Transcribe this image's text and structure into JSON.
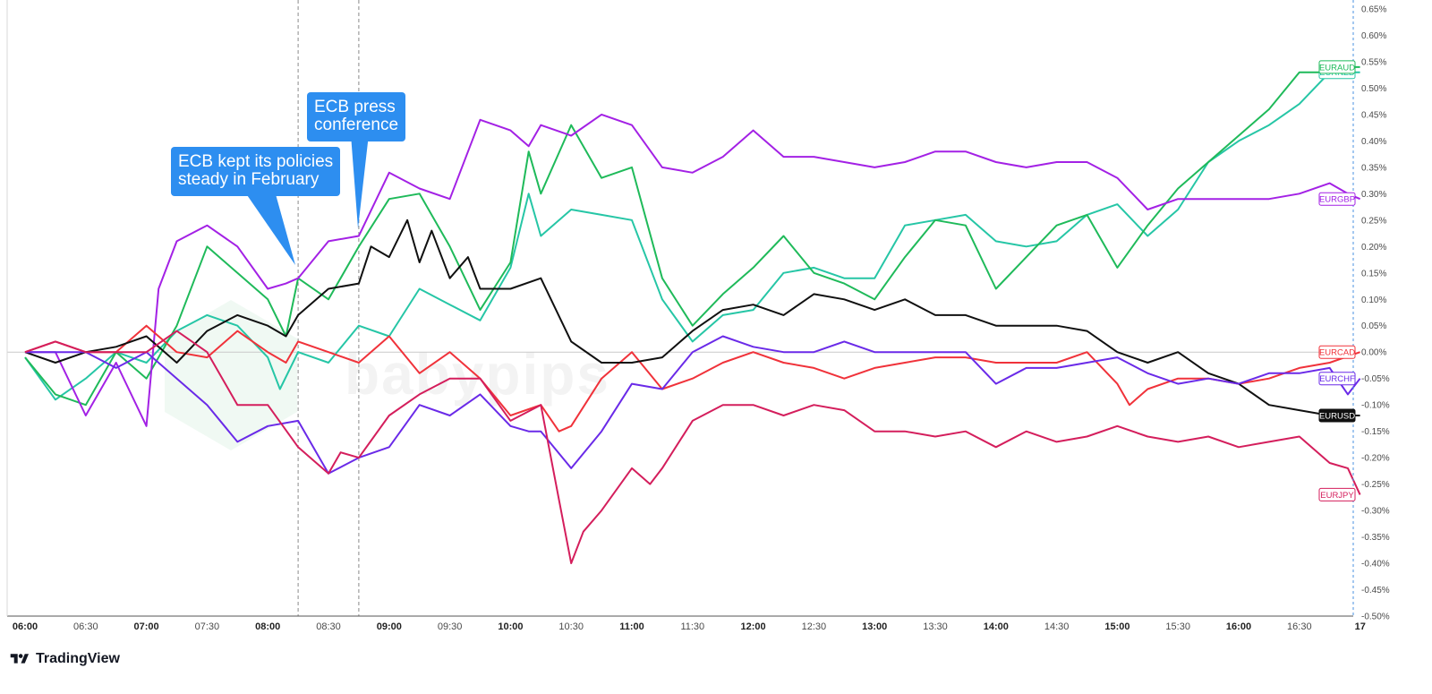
{
  "chart_data": {
    "type": "line",
    "y_axis_labels": [
      "0.65%",
      "0.60%",
      "0.55%",
      "0.50%",
      "0.45%",
      "0.40%",
      "0.35%",
      "0.30%",
      "0.25%",
      "0.20%",
      "0.15%",
      "0.10%",
      "0.05%",
      "0.00%",
      "-0.05%",
      "-0.10%",
      "-0.15%",
      "-0.20%",
      "-0.25%",
      "-0.30%",
      "-0.35%",
      "-0.40%",
      "-0.45%",
      "-0.50%"
    ],
    "ylim": [
      -0.5,
      0.65
    ],
    "x_axis_labels": [
      "06:00",
      "06:30",
      "07:00",
      "07:30",
      "08:00",
      "08:30",
      "09:00",
      "09:30",
      "10:00",
      "10:30",
      "11:00",
      "11:30",
      "12:00",
      "12:30",
      "13:00",
      "13:30",
      "14:00",
      "14:30",
      "15:00",
      "15:30",
      "16:00",
      "16:30",
      "17"
    ],
    "major_x_labels": [
      "06:00",
      "07:00",
      "08:00",
      "09:00",
      "10:00",
      "11:00",
      "12:00",
      "13:00",
      "14:00",
      "15:00",
      "16:00",
      "17"
    ],
    "xlim_hours": [
      6.0,
      17.0
    ],
    "grid": false,
    "zero_line": true,
    "event_markers": [
      {
        "time": "08:15",
        "label": "ECB kept its policies\nsteady in February"
      },
      {
        "time": "08:45",
        "label": "ECB press\nconference"
      }
    ],
    "series": [
      {
        "name": "EURNZD",
        "color": "#26c6a6",
        "x": [
          6.0,
          6.25,
          6.5,
          6.75,
          7.0,
          7.25,
          7.5,
          7.75,
          8.0,
          8.1,
          8.25,
          8.5,
          8.75,
          9.0,
          9.25,
          9.5,
          9.75,
          10.0,
          10.15,
          10.25,
          10.5,
          10.75,
          11.0,
          11.25,
          11.5,
          11.75,
          12.0,
          12.25,
          12.5,
          12.75,
          13.0,
          13.25,
          13.5,
          13.75,
          14.0,
          14.25,
          14.5,
          14.75,
          15.0,
          15.25,
          15.5,
          15.75,
          16.0,
          16.25,
          16.5,
          16.75,
          16.9,
          17.0
        ],
        "y": [
          -0.01,
          -0.09,
          -0.05,
          0.0,
          -0.02,
          0.04,
          0.07,
          0.05,
          -0.01,
          -0.07,
          0.0,
          -0.02,
          0.05,
          0.03,
          0.12,
          0.09,
          0.06,
          0.16,
          0.3,
          0.22,
          0.27,
          0.26,
          0.25,
          0.1,
          0.02,
          0.07,
          0.08,
          0.15,
          0.16,
          0.14,
          0.14,
          0.24,
          0.25,
          0.26,
          0.21,
          0.2,
          0.21,
          0.26,
          0.28,
          0.22,
          0.27,
          0.36,
          0.4,
          0.43,
          0.47,
          0.53,
          0.53,
          0.53
        ]
      },
      {
        "name": "EURAUD",
        "color": "#1fba5a",
        "x": [
          6.0,
          6.25,
          6.5,
          6.75,
          7.0,
          7.25,
          7.5,
          7.75,
          8.0,
          8.15,
          8.25,
          8.5,
          8.75,
          9.0,
          9.25,
          9.5,
          9.75,
          10.0,
          10.15,
          10.25,
          10.5,
          10.75,
          11.0,
          11.25,
          11.5,
          11.75,
          12.0,
          12.25,
          12.5,
          12.75,
          13.0,
          13.25,
          13.5,
          13.75,
          14.0,
          14.25,
          14.5,
          14.75,
          15.0,
          15.25,
          15.5,
          15.75,
          16.0,
          16.25,
          16.5,
          16.75,
          16.9,
          17.0
        ],
        "y": [
          -0.01,
          -0.08,
          -0.1,
          0.0,
          -0.05,
          0.05,
          0.2,
          0.15,
          0.1,
          0.03,
          0.14,
          0.1,
          0.2,
          0.29,
          0.3,
          0.2,
          0.08,
          0.17,
          0.38,
          0.3,
          0.43,
          0.33,
          0.35,
          0.14,
          0.05,
          0.11,
          0.16,
          0.22,
          0.15,
          0.13,
          0.1,
          0.18,
          0.25,
          0.24,
          0.12,
          0.18,
          0.24,
          0.26,
          0.16,
          0.24,
          0.31,
          0.36,
          0.41,
          0.46,
          0.53,
          0.53,
          0.54,
          0.54
        ]
      },
      {
        "name": "EURGBP",
        "color": "#a321e5",
        "x": [
          6.0,
          6.25,
          6.5,
          6.75,
          7.0,
          7.1,
          7.25,
          7.5,
          7.75,
          8.0,
          8.15,
          8.25,
          8.5,
          8.75,
          9.0,
          9.25,
          9.5,
          9.75,
          10.0,
          10.15,
          10.25,
          10.5,
          10.75,
          11.0,
          11.25,
          11.5,
          11.75,
          12.0,
          12.25,
          12.5,
          12.75,
          13.0,
          13.25,
          13.5,
          13.75,
          14.0,
          14.25,
          14.5,
          14.75,
          15.0,
          15.25,
          15.5,
          15.75,
          16.0,
          16.25,
          16.5,
          16.75,
          16.9,
          17.0
        ],
        "y": [
          0.0,
          0.0,
          -0.12,
          -0.02,
          -0.14,
          0.12,
          0.21,
          0.24,
          0.2,
          0.12,
          0.13,
          0.14,
          0.21,
          0.22,
          0.34,
          0.31,
          0.29,
          0.44,
          0.42,
          0.39,
          0.43,
          0.41,
          0.45,
          0.43,
          0.35,
          0.34,
          0.37,
          0.42,
          0.37,
          0.37,
          0.36,
          0.35,
          0.36,
          0.38,
          0.38,
          0.36,
          0.35,
          0.36,
          0.36,
          0.33,
          0.27,
          0.29,
          0.29,
          0.29,
          0.29,
          0.3,
          0.32,
          0.3,
          0.29
        ]
      },
      {
        "name": "EURCAD",
        "color": "#f0323a",
        "x": [
          6.0,
          6.25,
          6.5,
          6.75,
          7.0,
          7.25,
          7.5,
          7.75,
          8.0,
          8.15,
          8.25,
          8.5,
          8.75,
          9.0,
          9.25,
          9.5,
          9.75,
          10.0,
          10.25,
          10.4,
          10.5,
          10.75,
          11.0,
          11.25,
          11.5,
          11.75,
          12.0,
          12.25,
          12.5,
          12.75,
          13.0,
          13.25,
          13.5,
          13.75,
          14.0,
          14.25,
          14.5,
          14.75,
          15.0,
          15.1,
          15.25,
          15.5,
          15.75,
          16.0,
          16.25,
          16.5,
          16.75,
          17.0
        ],
        "y": [
          0.0,
          0.02,
          0.0,
          0.0,
          0.05,
          0.0,
          -0.01,
          0.04,
          0.0,
          -0.02,
          0.02,
          0.0,
          -0.02,
          0.03,
          -0.04,
          0.0,
          -0.05,
          -0.12,
          -0.1,
          -0.15,
          -0.14,
          -0.05,
          0.0,
          -0.07,
          -0.05,
          -0.02,
          0.0,
          -0.02,
          -0.03,
          -0.05,
          -0.03,
          -0.02,
          -0.01,
          -0.01,
          -0.02,
          -0.02,
          -0.02,
          0.0,
          -0.06,
          -0.1,
          -0.07,
          -0.05,
          -0.05,
          -0.06,
          -0.05,
          -0.03,
          -0.02,
          0.0
        ]
      },
      {
        "name": "EURUSD",
        "color": "#101010",
        "x": [
          6.0,
          6.25,
          6.5,
          6.75,
          7.0,
          7.25,
          7.5,
          7.75,
          8.0,
          8.15,
          8.25,
          8.5,
          8.75,
          8.85,
          9.0,
          9.15,
          9.25,
          9.35,
          9.5,
          9.65,
          9.75,
          10.0,
          10.25,
          10.5,
          10.75,
          11.0,
          11.25,
          11.5,
          11.75,
          12.0,
          12.25,
          12.5,
          12.75,
          13.0,
          13.25,
          13.5,
          13.75,
          14.0,
          14.25,
          14.5,
          14.75,
          15.0,
          15.25,
          15.5,
          15.75,
          16.0,
          16.25,
          16.5,
          16.75,
          17.0
        ],
        "y": [
          0.0,
          -0.02,
          0.0,
          0.01,
          0.03,
          -0.02,
          0.04,
          0.07,
          0.05,
          0.03,
          0.07,
          0.12,
          0.13,
          0.2,
          0.18,
          0.25,
          0.17,
          0.23,
          0.14,
          0.18,
          0.12,
          0.12,
          0.14,
          0.02,
          -0.02,
          -0.02,
          -0.01,
          0.04,
          0.08,
          0.09,
          0.07,
          0.11,
          0.1,
          0.08,
          0.1,
          0.07,
          0.07,
          0.05,
          0.05,
          0.05,
          0.04,
          0.0,
          -0.02,
          0.0,
          -0.04,
          -0.06,
          -0.1,
          -0.11,
          -0.12,
          -0.12
        ]
      },
      {
        "name": "EURCHF",
        "color": "#6a2ae8",
        "x": [
          6.0,
          6.25,
          6.5,
          6.75,
          7.0,
          7.25,
          7.5,
          7.75,
          8.0,
          8.25,
          8.5,
          8.75,
          9.0,
          9.25,
          9.5,
          9.75,
          10.0,
          10.15,
          10.25,
          10.5,
          10.75,
          11.0,
          11.25,
          11.5,
          11.75,
          12.0,
          12.25,
          12.5,
          12.75,
          13.0,
          13.25,
          13.5,
          13.75,
          14.0,
          14.25,
          14.5,
          14.75,
          15.0,
          15.25,
          15.5,
          15.75,
          16.0,
          16.25,
          16.5,
          16.75,
          16.9,
          17.0
        ],
        "y": [
          0.0,
          0.0,
          0.0,
          -0.03,
          0.0,
          -0.05,
          -0.1,
          -0.17,
          -0.14,
          -0.13,
          -0.23,
          -0.2,
          -0.18,
          -0.1,
          -0.12,
          -0.08,
          -0.14,
          -0.15,
          -0.15,
          -0.22,
          -0.15,
          -0.06,
          -0.07,
          0.0,
          0.03,
          0.01,
          0.0,
          0.0,
          0.02,
          0.0,
          0.0,
          0.0,
          0.0,
          -0.06,
          -0.03,
          -0.03,
          -0.02,
          -0.01,
          -0.04,
          -0.06,
          -0.05,
          -0.06,
          -0.04,
          -0.04,
          -0.03,
          -0.08,
          -0.05
        ]
      },
      {
        "name": "EURJPY",
        "color": "#d41e5c",
        "x": [
          6.0,
          6.25,
          6.5,
          6.75,
          7.0,
          7.25,
          7.5,
          7.75,
          8.0,
          8.25,
          8.5,
          8.6,
          8.75,
          9.0,
          9.25,
          9.5,
          9.75,
          10.0,
          10.25,
          10.4,
          10.5,
          10.6,
          10.75,
          11.0,
          11.15,
          11.25,
          11.5,
          11.75,
          12.0,
          12.25,
          12.5,
          12.75,
          13.0,
          13.25,
          13.5,
          13.75,
          14.0,
          14.25,
          14.5,
          14.75,
          15.0,
          15.25,
          15.5,
          15.75,
          16.0,
          16.25,
          16.5,
          16.75,
          16.9,
          17.0
        ],
        "y": [
          0.0,
          0.02,
          0.0,
          0.0,
          0.0,
          0.04,
          0.0,
          -0.1,
          -0.1,
          -0.18,
          -0.23,
          -0.19,
          -0.2,
          -0.12,
          -0.08,
          -0.05,
          -0.05,
          -0.13,
          -0.1,
          -0.28,
          -0.4,
          -0.34,
          -0.3,
          -0.22,
          -0.25,
          -0.22,
          -0.13,
          -0.1,
          -0.1,
          -0.12,
          -0.1,
          -0.11,
          -0.15,
          -0.15,
          -0.16,
          -0.15,
          -0.18,
          -0.15,
          -0.17,
          -0.16,
          -0.14,
          -0.16,
          -0.17,
          -0.16,
          -0.18,
          -0.17,
          -0.16,
          -0.21,
          -0.22,
          -0.27
        ]
      }
    ]
  },
  "watermark": "babypips",
  "branding": {
    "logo_icon": "tradingview-logo-icon",
    "name": "TradingView"
  },
  "colors": {
    "callout": "#2d8ef0",
    "axis": "#b2b5be",
    "zero_line": "#c9c9c9"
  }
}
